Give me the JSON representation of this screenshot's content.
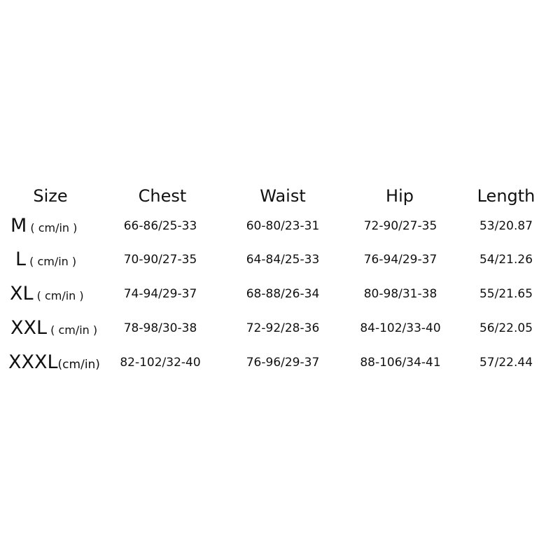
{
  "headers": [
    "Size",
    "Chest",
    "Waist",
    "Hip",
    "Length"
  ],
  "rows": [
    {
      "size": "M",
      "unit": " ( cm/in )",
      "chest": "66-86/25-33",
      "waist": "60-80/23-31",
      "hip": "72-90/27-35",
      "length": "53/20.87"
    },
    {
      "size": "L",
      "unit": " ( cm/in )",
      "chest": "70-90/27-35",
      "waist": "64-84/25-33",
      "hip": "76-94/29-37",
      "length": "54/21.26"
    },
    {
      "size": "XL",
      "unit": " ( cm/in )",
      "chest": "74-94/29-37",
      "waist": "68-88/26-34",
      "hip": "80-98/31-38",
      "length": "55/21.65"
    },
    {
      "size": "XXL",
      "unit": " ( cm/in )",
      "chest": "78-98/30-38",
      "waist": "72-92/28-36",
      "hip": "84-102/33-40",
      "length": "56/22.05"
    },
    {
      "size": "XXXL",
      "unit": "(cm/in)",
      "chest": "82-102/32-40",
      "waist": "76-96/29-37",
      "hip": "88-106/34-41",
      "length": "57/22.44"
    }
  ]
}
